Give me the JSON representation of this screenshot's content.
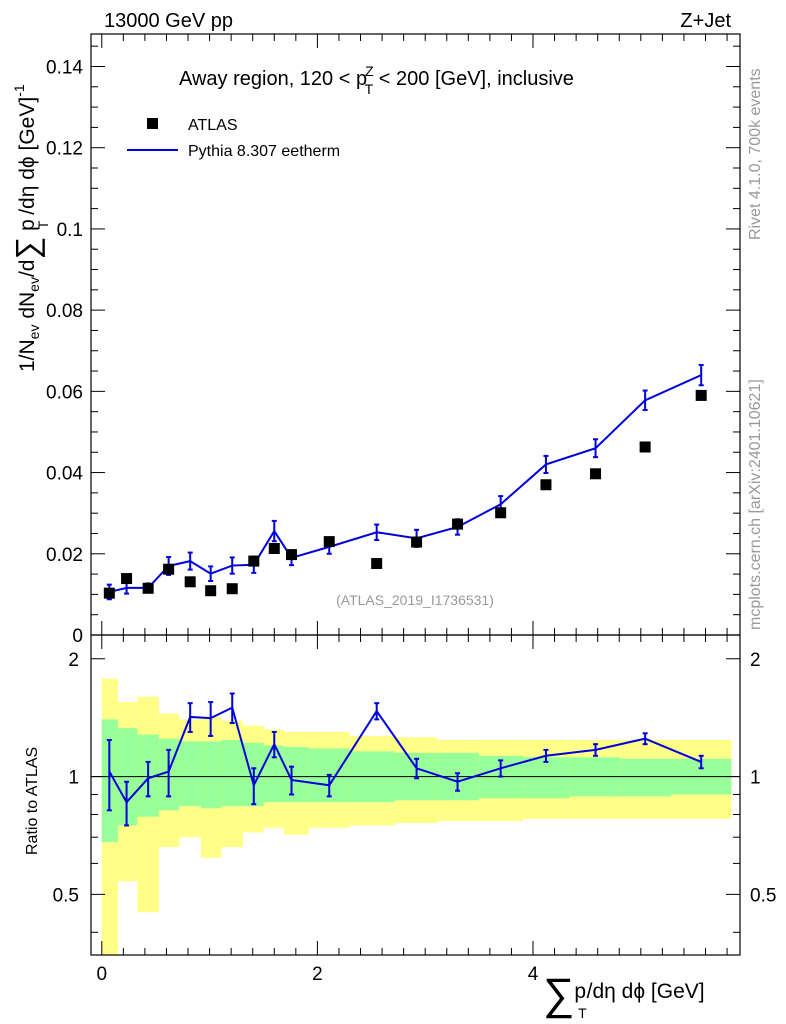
{
  "header": {
    "left": "13000 GeV pp",
    "right": "Z+Jet"
  },
  "side_labels": {
    "rivet": "Rivet 4.1.0,  700k events",
    "mcplots": "mcplots.cern.ch [arXiv:2401.10621]"
  },
  "watermark": "(ATLAS_2019_I1736531)",
  "colors": {
    "mc": "#0000dd",
    "band_inner": "#99ff99",
    "band_outer": "#ffff88",
    "data": "#000000"
  },
  "chart_data": {
    "type": "scatter",
    "title_parts": {
      "pre": "Away region, 120 < p",
      "sup": "Z",
      "sub": "T",
      "post": " < 200 [GeV], inclusive"
    },
    "xlabel": {
      "sum": "∑",
      "p": "p",
      "sub": "T",
      "rest": "/dη dϕ [GeV]"
    },
    "ylabel": {
      "a": "1/N",
      "a_sub": "ev",
      "b": " dN",
      "b_sub": "ev",
      "c": "/d",
      "sum": "∑",
      "d": " p",
      "d_sub": "T",
      "e": " /dη dϕ  [GeV]",
      "e_sup": "-1"
    },
    "ratio_ylabel": "Ratio to ATLAS",
    "xlim": [
      -0.1,
      5.92
    ],
    "ylim": [
      0,
      0.148
    ],
    "ratio_ylim": [
      0.35,
      2.3
    ],
    "x_ticks": [
      "0",
      "2",
      "4"
    ],
    "y_ticks": [
      "0",
      "0.02",
      "0.04",
      "0.06",
      "0.08",
      "0.1",
      "0.12",
      "0.14"
    ],
    "ratio_ticks": [
      "0.5",
      "1",
      "2"
    ],
    "legend": [
      {
        "name": "ATLAS",
        "kind": "marker"
      },
      {
        "name": "Pythia 8.307 eetherm",
        "kind": "line"
      }
    ],
    "x": [
      0.07,
      0.23,
      0.43,
      0.62,
      0.82,
      1.01,
      1.21,
      1.41,
      1.6,
      1.76,
      2.11,
      2.55,
      2.92,
      3.3,
      3.7,
      4.12,
      4.58,
      5.04,
      5.56
    ],
    "bin_edges": [
      0.0,
      0.15,
      0.33,
      0.53,
      0.72,
      0.92,
      1.11,
      1.31,
      1.5,
      1.69,
      1.92,
      2.3,
      2.72,
      3.11,
      3.5,
      3.91,
      4.34,
      4.81,
      5.28,
      5.84
    ],
    "data": [
      0.0103,
      0.0139,
      0.0115,
      0.0162,
      0.0131,
      0.0109,
      0.0114,
      0.0182,
      0.0213,
      0.0198,
      0.023,
      0.0176,
      0.0229,
      0.0273,
      0.0301,
      0.037,
      0.0397,
      0.0463,
      0.059
    ],
    "mc": [
      0.0106,
      0.0116,
      0.0116,
      0.017,
      0.0182,
      0.0151,
      0.0171,
      0.0173,
      0.0256,
      0.019,
      0.0217,
      0.0253,
      0.0238,
      0.0266,
      0.0322,
      0.042,
      0.046,
      0.0578,
      0.064
    ],
    "mc_err": [
      0.0018,
      0.0014,
      0.0011,
      0.0022,
      0.0021,
      0.0018,
      0.002,
      0.002,
      0.0025,
      0.0018,
      0.0017,
      0.0019,
      0.0021,
      0.0019,
      0.002,
      0.0021,
      0.0022,
      0.0024,
      0.0025
    ],
    "ratio": [
      1.03,
      0.86,
      0.99,
      1.03,
      1.42,
      1.41,
      1.5,
      0.95,
      1.21,
      0.98,
      0.95,
      1.47,
      1.05,
      0.97,
      1.05,
      1.13,
      1.17,
      1.25,
      1.09
    ],
    "ratio_err": [
      0.21,
      0.11,
      0.1,
      0.14,
      0.12,
      0.14,
      0.13,
      0.1,
      0.09,
      0.08,
      0.06,
      0.07,
      0.06,
      0.05,
      0.05,
      0.04,
      0.04,
      0.04,
      0.04
    ],
    "band_inner": [
      [
        0.68,
        1.4
      ],
      [
        0.75,
        1.33
      ],
      [
        0.79,
        1.28
      ],
      [
        0.82,
        1.25
      ],
      [
        0.84,
        1.23
      ],
      [
        0.83,
        1.23
      ],
      [
        0.84,
        1.24
      ],
      [
        0.84,
        1.22
      ],
      [
        0.86,
        1.2
      ],
      [
        0.86,
        1.19
      ],
      [
        0.86,
        1.18
      ],
      [
        0.86,
        1.16
      ],
      [
        0.87,
        1.15
      ],
      [
        0.87,
        1.15
      ],
      [
        0.88,
        1.13
      ],
      [
        0.88,
        1.12
      ],
      [
        0.89,
        1.12
      ],
      [
        0.89,
        1.11
      ],
      [
        0.9,
        1.11
      ]
    ],
    "band_outer": [
      [
        0.35,
        1.78
      ],
      [
        0.54,
        1.55
      ],
      [
        0.45,
        1.6
      ],
      [
        0.66,
        1.45
      ],
      [
        0.7,
        1.4
      ],
      [
        0.62,
        1.42
      ],
      [
        0.66,
        1.39
      ],
      [
        0.72,
        1.35
      ],
      [
        0.74,
        1.32
      ],
      [
        0.71,
        1.3
      ],
      [
        0.74,
        1.3
      ],
      [
        0.75,
        1.27
      ],
      [
        0.76,
        1.26
      ],
      [
        0.77,
        1.24
      ],
      [
        0.77,
        1.24
      ],
      [
        0.78,
        1.24
      ],
      [
        0.78,
        1.24
      ],
      [
        0.78,
        1.24
      ],
      [
        0.78,
        1.24
      ]
    ]
  }
}
